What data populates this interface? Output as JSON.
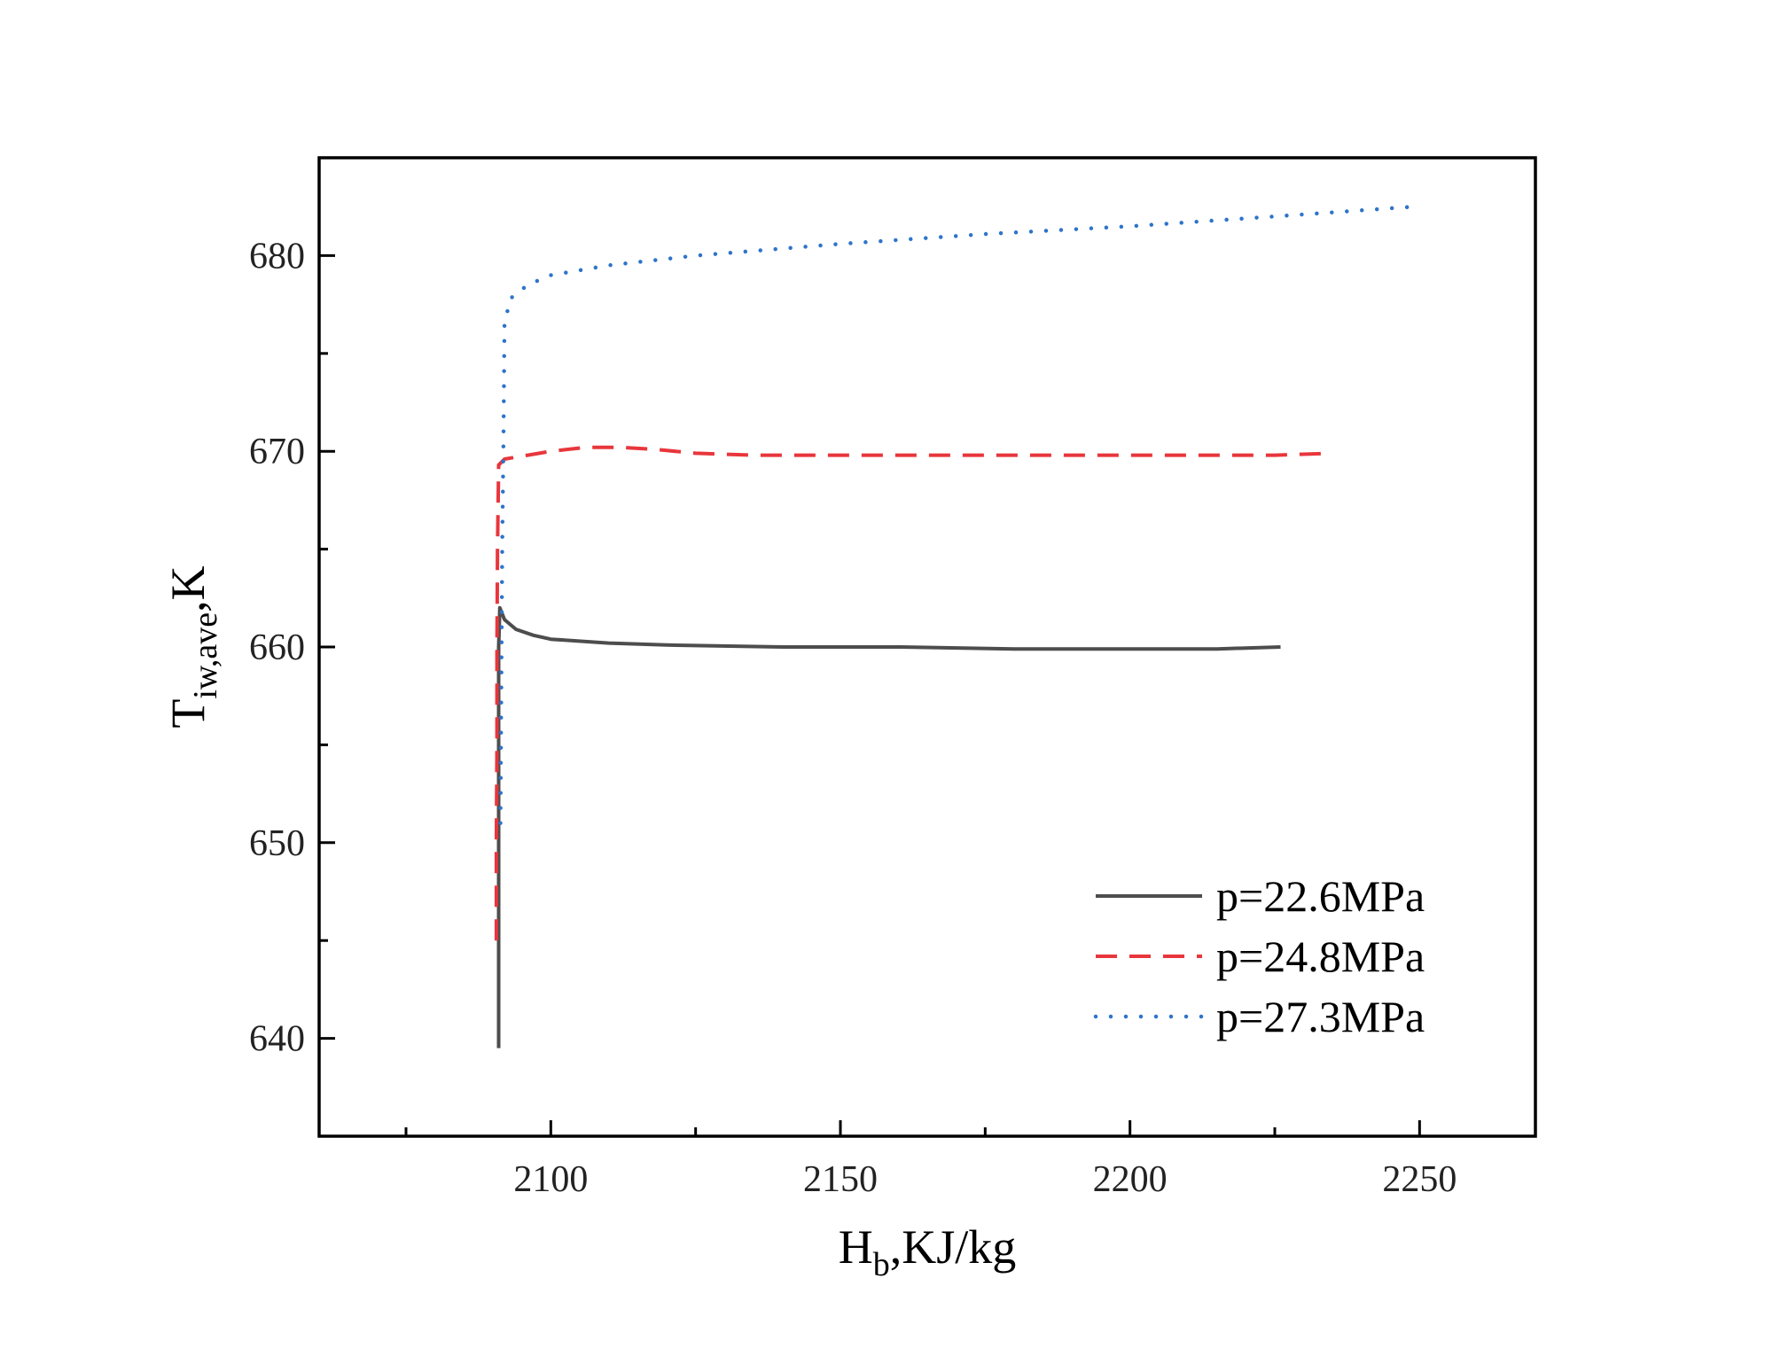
{
  "chart_data": {
    "type": "line",
    "title": "",
    "xlabel": {
      "main": "H",
      "sub": "b",
      "rest": ",KJ/kg"
    },
    "ylabel": {
      "main": "T",
      "sub": "iw,ave",
      "rest": ",K"
    },
    "xlim": [
      2060,
      2270
    ],
    "ylim": [
      635,
      685
    ],
    "x_ticks": [
      2100,
      2150,
      2200,
      2250
    ],
    "x_minor_ticks": [
      2075,
      2125,
      2175,
      2225
    ],
    "y_ticks": [
      640,
      650,
      660,
      670,
      680
    ],
    "y_minor_ticks": [
      645,
      655,
      665,
      675
    ],
    "grid": false,
    "legend_position": "bottom-right",
    "series": [
      {
        "name": "p=22.6MPa",
        "color": "#4d4d4d",
        "style": "solid",
        "x": [
          2091.0,
          2091.0,
          2091.0,
          2091.0,
          2091.0,
          2091.2,
          2092,
          2094,
          2097,
          2100,
          2110,
          2120,
          2140,
          2160,
          2180,
          2200,
          2215,
          2226
        ],
        "y": [
          639.5,
          645,
          650,
          655,
          660,
          662.0,
          661.4,
          660.9,
          660.6,
          660.4,
          660.2,
          660.1,
          660.0,
          660.0,
          659.9,
          659.9,
          659.9,
          660.0
        ]
      },
      {
        "name": "p=24.8MPa",
        "color": "#e8363c",
        "style": "dashed",
        "x": [
          2090.6,
          2090.6,
          2090.7,
          2090.7,
          2090.8,
          2091.0,
          2092,
          2096,
          2100,
          2106,
          2112,
          2118,
          2125,
          2135,
          2150,
          2170,
          2190,
          2210,
          2225,
          2235
        ],
        "y": [
          645,
          650,
          655,
          660,
          665,
          669.3,
          669.6,
          669.8,
          670.0,
          670.2,
          670.2,
          670.1,
          669.9,
          669.8,
          669.8,
          669.8,
          669.8,
          669.8,
          669.8,
          669.9
        ]
      },
      {
        "name": "p=27.3MPa",
        "color": "#2e74c9",
        "style": "dotted",
        "x": [
          2091.3,
          2091.4,
          2091.5,
          2091.6,
          2091.8,
          2092.0,
          2093,
          2096,
          2100,
          2110,
          2125,
          2150,
          2175,
          2200,
          2225,
          2249
        ],
        "y": [
          651,
          655,
          660,
          665,
          670,
          676.5,
          677.8,
          678.5,
          679.0,
          679.5,
          680.0,
          680.6,
          681.1,
          681.5,
          682.0,
          682.5
        ]
      }
    ]
  }
}
